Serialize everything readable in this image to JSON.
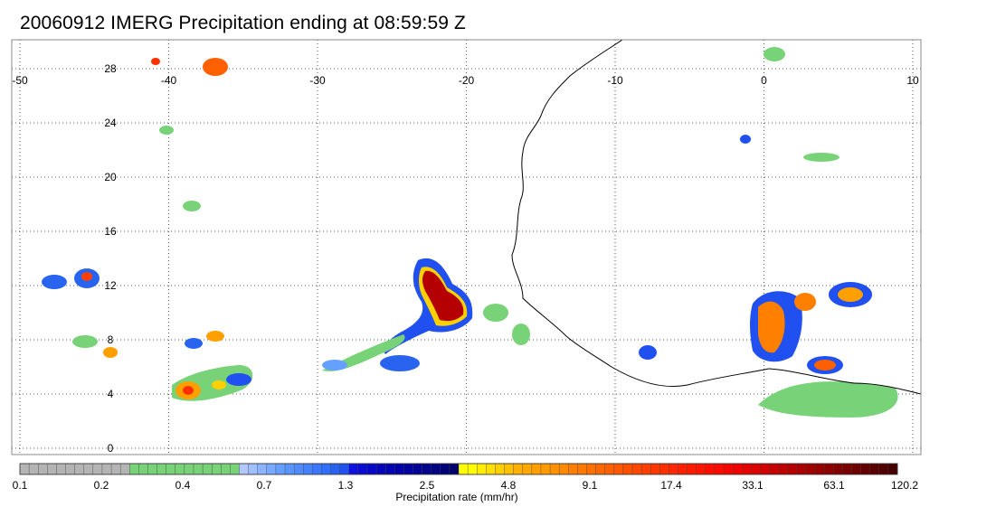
{
  "title": "20060912 IMERG Precipitation ending at 08:59:59 Z",
  "map": {
    "lon_range": [
      -50,
      10
    ],
    "lat_range": [
      -1.5,
      31
    ],
    "lon_ticks": [
      "-50",
      "-40",
      "-30",
      "-20",
      "-10",
      "0",
      "10"
    ],
    "lat_ticks": [
      "28",
      "24",
      "20",
      "16",
      "12",
      "8",
      "4",
      "0"
    ],
    "gridlines": "dotted",
    "coastline_color": "#000000",
    "background_color": "#ffffff"
  },
  "colorbar": {
    "label": "Precipitation rate (mm/hr)",
    "tick_labels": [
      "0.1",
      "0.2",
      "0.4",
      "0.7",
      "1.3",
      "2.5",
      "4.8",
      "9.1",
      "17.4",
      "33.1",
      "63.1",
      "120.2"
    ],
    "colors": [
      "#b4b4b4",
      "#b4b4b4",
      "#b4b4b4",
      "#b4b4b4",
      "#b4b4b4",
      "#b4b4b4",
      "#b4b4b4",
      "#b4b4b4",
      "#b4b4b4",
      "#b4b4b4",
      "#b4b4b4",
      "#b4b4b4",
      "#78d278",
      "#78d278",
      "#78d278",
      "#78d278",
      "#78d278",
      "#78d278",
      "#78d278",
      "#78d278",
      "#78d278",
      "#78d278",
      "#78d278",
      "#78d278",
      "#b4c8ff",
      "#a0c0ff",
      "#8cb4ff",
      "#78aaff",
      "#64a0ff",
      "#5a96ff",
      "#508cff",
      "#4682ff",
      "#3c78ff",
      "#326eff",
      "#2864f0",
      "#2050f0",
      "#1010e0",
      "#0c0cd2",
      "#0808c8",
      "#0606b9",
      "#0404b0",
      "#0202aa",
      "#0202a0",
      "#020296",
      "#02028c",
      "#020282",
      "#020278",
      "#02026e",
      "#ffff00",
      "#ffff00",
      "#ffee00",
      "#ffe000",
      "#ffd000",
      "#ffc000",
      "#ffb000",
      "#ffa800",
      "#ffa000",
      "#ff9a00",
      "#ff9200",
      "#ff8a00",
      "#ff8000",
      "#ff7800",
      "#ff7000",
      "#ff6800",
      "#ff6000",
      "#ff5800",
      "#ff5000",
      "#ff4800",
      "#ff4000",
      "#ff3800",
      "#ff3000",
      "#ff2800",
      "#ff2000",
      "#ff1a00",
      "#ff1400",
      "#ff0e00",
      "#fa0a00",
      "#f50500",
      "#f00000",
      "#e60000",
      "#dc0000",
      "#d20000",
      "#c80000",
      "#be0000",
      "#b40000",
      "#aa0000",
      "#a00000",
      "#960000",
      "#8c0000",
      "#820000",
      "#780000",
      "#6e0000",
      "#640000",
      "#5a0000",
      "#500000",
      "#460000"
    ]
  }
}
